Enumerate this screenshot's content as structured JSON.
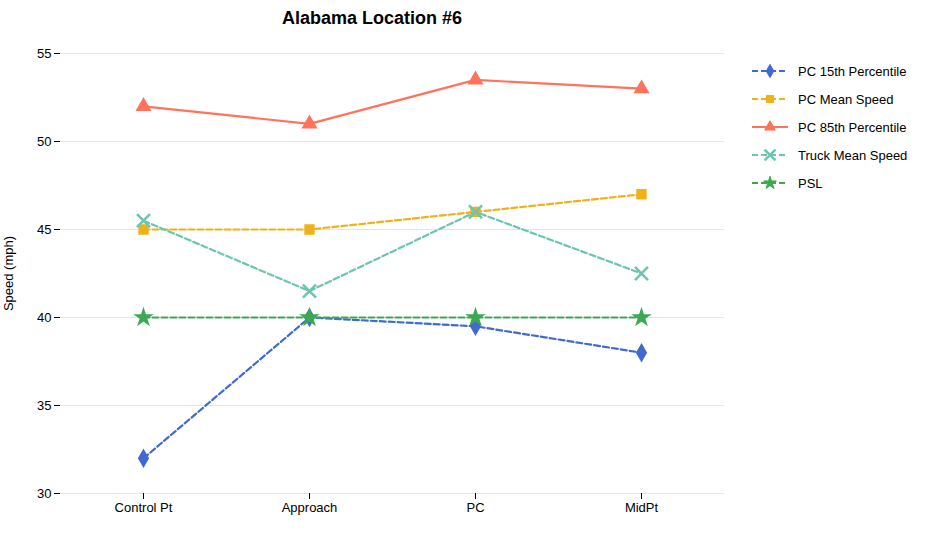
{
  "chart_data": {
    "type": "line",
    "title": "Alabama Location #6",
    "categories": [
      "Control Pt",
      "Approach",
      "PC",
      "MidPt"
    ],
    "ylabel": "Speed (mph)",
    "ylim": [
      30,
      55
    ],
    "yticks": [
      30,
      35,
      40,
      45,
      50,
      55
    ],
    "grid": true,
    "legend": "right",
    "series": [
      {
        "name": "PC 15th Percentile",
        "values": [
          32,
          40,
          39.5,
          38
        ],
        "marker": "diamond",
        "line_style": "dashed"
      },
      {
        "name": "PC Mean Speed",
        "values": [
          45,
          45,
          46,
          47
        ],
        "marker": "square",
        "line_style": "dashed"
      },
      {
        "name": "PC 85th Percentile",
        "values": [
          52,
          51,
          53.5,
          53
        ],
        "marker": "triangle",
        "line_style": "solid"
      },
      {
        "name": "Truck Mean Speed",
        "values": [
          45.5,
          41.5,
          46,
          42.5
        ],
        "marker": "x",
        "line_style": "dashed"
      },
      {
        "name": "PSL",
        "values": [
          40,
          40,
          40,
          40
        ],
        "marker": "star",
        "line_style": "dashed"
      }
    ]
  }
}
